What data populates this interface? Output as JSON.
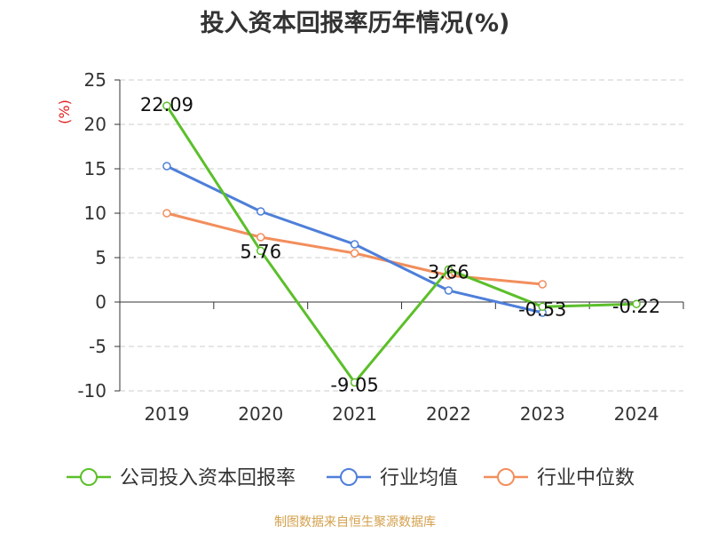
{
  "chart_data": {
    "type": "line",
    "title": "投入资本回报率历年情况(%)",
    "ylabel": "(%)",
    "xlabel": "",
    "categories": [
      "2019",
      "2020",
      "2021",
      "2022",
      "2023",
      "2024"
    ],
    "ylim": [
      -10,
      25
    ],
    "yticks": [
      "25",
      "20",
      "15",
      "10",
      "5",
      "0",
      "-5",
      "-10"
    ],
    "grid": true,
    "legend_position": "bottom",
    "series": [
      {
        "name": "公司投入资本回报率",
        "color": "#5cbf2a",
        "values": [
          22.09,
          5.76,
          -9.05,
          3.66,
          -0.53,
          -0.22
        ],
        "labels": [
          "22.09",
          "5.76",
          "-9.05",
          "3.66",
          "-0.53",
          "-0.22"
        ]
      },
      {
        "name": "行业均值",
        "color": "#4e7fd9",
        "values": [
          15.3,
          10.2,
          6.5,
          1.3,
          -1.2,
          null
        ]
      },
      {
        "name": "行业中位数",
        "color": "#f28e5c",
        "values": [
          10.0,
          7.3,
          5.5,
          3.0,
          2.0,
          null
        ]
      }
    ]
  },
  "source": "制图数据来自恒生聚源数据库"
}
